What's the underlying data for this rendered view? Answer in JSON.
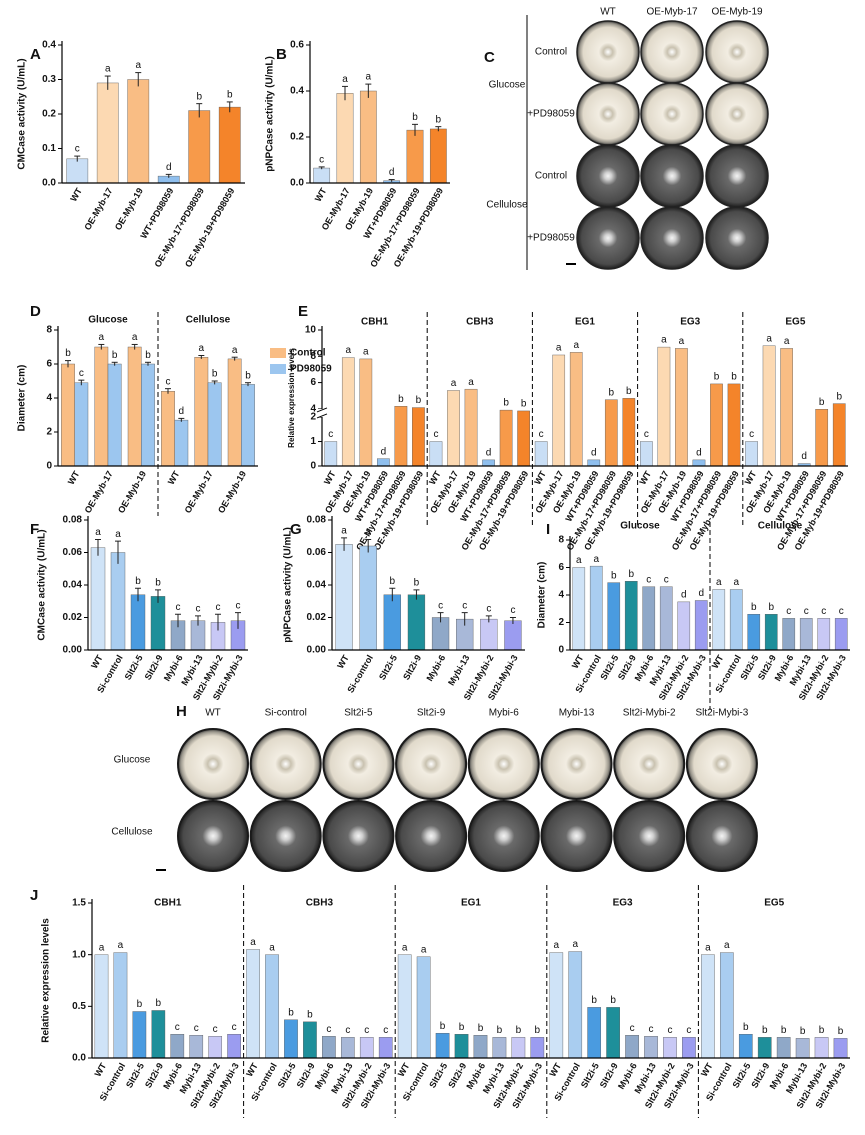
{
  "chart_data": [
    {
      "type": "bar",
      "panel": "A",
      "ylabel": "CMCase activity (U/mL)",
      "categories": [
        "WT",
        "OE-Myb-17",
        "OE-Myb-19",
        "WT+PD98059",
        "OE-Myb-17+PD98059",
        "OE-Myb-19+PD98059"
      ],
      "values": [
        0.07,
        0.29,
        0.3,
        0.02,
        0.21,
        0.22
      ],
      "errors": [
        0.008,
        0.02,
        0.02,
        0.005,
        0.02,
        0.015
      ],
      "letters": [
        "c",
        "a",
        "a",
        "d",
        "b",
        "b"
      ],
      "colors": [
        "#c9def5",
        "#fcd9b2",
        "#f9bd84",
        "#8fbfee",
        "#f79a4a",
        "#f4842a"
      ],
      "ylim": [
        0,
        0.4
      ],
      "yticks": [
        {
          "value": 0,
          "label": "0.0"
        },
        0.1,
        0.2,
        0.3,
        0.4
      ]
    },
    {
      "type": "bar",
      "panel": "B",
      "ylabel": "pNPCase activity (U/mL)",
      "categories": [
        "WT",
        "OE-Myb-17",
        "OE-Myb-19",
        "WT+PD98059",
        "OE-Myb-17+PD98059",
        "OE-Myb-19+PD98059"
      ],
      "values": [
        0.065,
        0.39,
        0.4,
        0.01,
        0.23,
        0.235
      ],
      "errors": [
        0.005,
        0.03,
        0.03,
        0.005,
        0.025,
        0.01
      ],
      "letters": [
        "c",
        "a",
        "a",
        "d",
        "b",
        "b"
      ],
      "colors": [
        "#c9def5",
        "#fcd9b2",
        "#f9bd84",
        "#8fbfee",
        "#f79a4a",
        "#f4842a"
      ],
      "ylim": [
        0,
        0.6
      ],
      "yticks": [
        {
          "value": 0,
          "label": "0.0"
        },
        0.2,
        0.4,
        0.6
      ]
    },
    {
      "type": "bar",
      "panel": "D",
      "ylabel": "Diameter (cm)",
      "categories": [
        "WT",
        "OE-Myb-17",
        "OE-Myb-19",
        "WT",
        "OE-Myb-17",
        "OE-Myb-19"
      ],
      "groups": [
        "Glucose",
        "Cellulose"
      ],
      "series": [
        {
          "name": "Control",
          "color": "#f9bd84",
          "values": [
            6.0,
            7.0,
            7.0,
            4.4,
            6.4,
            6.3
          ],
          "errors": [
            0.2,
            0.15,
            0.15,
            0.15,
            0.1,
            0.1
          ],
          "letters": [
            "b",
            "a",
            "a",
            "c",
            "a",
            "a"
          ]
        },
        {
          "name": "PD98059",
          "color": "#9cc6ef",
          "values": [
            4.9,
            6.0,
            6.0,
            2.7,
            4.9,
            4.8
          ],
          "errors": [
            0.15,
            0.1,
            0.1,
            0.1,
            0.1,
            0.1
          ],
          "letters": [
            "c",
            "b",
            "b",
            "d",
            "b",
            "b"
          ]
        }
      ],
      "legend": "right",
      "ylim": [
        0,
        8
      ],
      "yticks": [
        0,
        2,
        4,
        6,
        8
      ]
    },
    {
      "type": "bar",
      "panel": "E",
      "ylabel": "Relative expression levels",
      "categories": [
        "OE-Myb-17",
        "OE-Myb-19",
        "WT+PD98059",
        "OE-Myb-17+PD98059",
        "OE-Myb-19+PD98059",
        "WT"
      ],
      "order": [
        5,
        0,
        1,
        2,
        3,
        4
      ],
      "groups": [
        {
          "name": "CBH1",
          "values": [
            7.9,
            7.8,
            0.3,
            4.2,
            4.1,
            1.0
          ],
          "letters": [
            "a",
            "a",
            "d",
            "b",
            "b",
            "c"
          ]
        },
        {
          "name": "CBH3",
          "values": [
            5.4,
            5.5,
            0.25,
            3.7,
            3.5,
            1.0
          ],
          "letters": [
            "a",
            "a",
            "d",
            "b",
            "b",
            "c"
          ]
        },
        {
          "name": "EG1",
          "values": [
            8.1,
            8.3,
            0.25,
            4.7,
            4.8,
            1.0
          ],
          "letters": [
            "a",
            "a",
            "d",
            "b",
            "b",
            "c"
          ]
        },
        {
          "name": "EG3",
          "values": [
            8.7,
            8.6,
            0.25,
            5.9,
            5.9,
            1.0
          ],
          "letters": [
            "a",
            "a",
            "d",
            "b",
            "b",
            "c"
          ]
        },
        {
          "name": "EG5",
          "values": [
            8.8,
            8.6,
            0.1,
            3.9,
            4.4,
            1.0
          ],
          "letters": [
            "a",
            "a",
            "d",
            "b",
            "b",
            "c"
          ]
        }
      ],
      "colors": [
        "#fcd9b2",
        "#f9bd84",
        "#8fbfee",
        "#f79a4a",
        "#f4842a",
        "#c9def5"
      ],
      "ylim": [
        0,
        10
      ],
      "ybreak": [
        2,
        4
      ],
      "yticks": [
        0,
        1,
        2,
        4,
        6,
        8,
        10
      ]
    },
    {
      "type": "bar",
      "panel": "F",
      "ylabel": "CMCase activity (U/mL)",
      "categories": [
        "WT",
        "Si-control",
        "Slt2i-5",
        "Slt2i-9",
        "Mybi-6",
        "Mybi-13",
        "Slt2i-Mybi-2",
        "Slt2i-Mybi-3"
      ],
      "values": [
        0.063,
        0.06,
        0.034,
        0.033,
        0.018,
        0.018,
        0.017,
        0.018
      ],
      "errors": [
        0.005,
        0.007,
        0.004,
        0.004,
        0.004,
        0.003,
        0.005,
        0.005
      ],
      "letters": [
        "a",
        "a",
        "b",
        "b",
        "c",
        "c",
        "c",
        "c"
      ],
      "colors": [
        "#cfe3f7",
        "#a9cdf0",
        "#4a9be0",
        "#1e8f9a",
        "#8fa8c8",
        "#a8b8d8",
        "#c8c8f5",
        "#9b9cf0"
      ],
      "ylim": [
        0,
        0.08
      ],
      "yticks": [
        {
          "value": 0,
          "label": "0.00"
        },
        0.02,
        0.04,
        0.06,
        0.08
      ]
    },
    {
      "type": "bar",
      "panel": "G",
      "ylabel": "pNPCase activity (U/mL)",
      "categories": [
        "WT",
        "Si-control",
        "Slt2i-5",
        "Slt2i-9",
        "Mybi-6",
        "Mybi-13",
        "Slt2i-Mybi-2",
        "Slt2i-Mybi-3"
      ],
      "values": [
        0.065,
        0.064,
        0.034,
        0.034,
        0.02,
        0.019,
        0.019,
        0.018
      ],
      "errors": [
        0.004,
        0.004,
        0.004,
        0.003,
        0.003,
        0.004,
        0.002,
        0.002
      ],
      "letters": [
        "a",
        "a",
        "b",
        "b",
        "c",
        "c",
        "c",
        "c"
      ],
      "colors": [
        "#cfe3f7",
        "#a9cdf0",
        "#4a9be0",
        "#1e8f9a",
        "#8fa8c8",
        "#a8b8d8",
        "#c8c8f5",
        "#9b9cf0"
      ],
      "ylim": [
        0,
        0.08
      ],
      "yticks": [
        {
          "value": 0,
          "label": "0.00"
        },
        0.02,
        0.04,
        0.06,
        0.08
      ]
    },
    {
      "type": "bar",
      "panel": "I",
      "ylabel": "Diameter (cm)",
      "categories": [
        "WT",
        "Si-control",
        "Slt2i-5",
        "Slt2i-9",
        "Mybi-6",
        "Mybi-13",
        "Slt2i-Mybi-2",
        "Slt2i-Mybi-3"
      ],
      "groups": [
        {
          "name": "Glucose",
          "values": [
            6.0,
            6.1,
            4.9,
            5.0,
            4.6,
            4.6,
            3.5,
            3.6
          ],
          "letters": [
            "a",
            "a",
            "b",
            "b",
            "c",
            "c",
            "d",
            "d"
          ]
        },
        {
          "name": "Cellulose",
          "values": [
            4.4,
            4.4,
            2.6,
            2.6,
            2.3,
            2.3,
            2.3,
            2.3
          ],
          "letters": [
            "a",
            "a",
            "b",
            "b",
            "c",
            "c",
            "c",
            "c"
          ]
        }
      ],
      "colors": [
        "#cfe3f7",
        "#a9cdf0",
        "#4a9be0",
        "#1e8f9a",
        "#8fa8c8",
        "#a8b8d8",
        "#c8c8f5",
        "#9b9cf0"
      ],
      "ylim": [
        0,
        8
      ],
      "yticks": [
        0,
        2,
        4,
        6,
        8
      ]
    },
    {
      "type": "bar",
      "panel": "J",
      "ylabel": "Relative expression levels",
      "categories": [
        "WT",
        "Si-control",
        "Slt2i-5",
        "Slt2i-9",
        "Mybi-6",
        "Mybi-13",
        "Slt2i-Mybi-2",
        "Slt2i-Mybi-3"
      ],
      "groups": [
        {
          "name": "CBH1",
          "values": [
            1.0,
            1.02,
            0.45,
            0.46,
            0.23,
            0.22,
            0.21,
            0.23
          ],
          "letters": [
            "a",
            "a",
            "b",
            "b",
            "c",
            "c",
            "c",
            "c"
          ]
        },
        {
          "name": "CBH3",
          "values": [
            1.05,
            1.0,
            0.37,
            0.35,
            0.21,
            0.2,
            0.2,
            0.2
          ],
          "letters": [
            "a",
            "a",
            "b",
            "b",
            "c",
            "c",
            "c",
            "c"
          ]
        },
        {
          "name": "EG1",
          "values": [
            1.0,
            0.98,
            0.24,
            0.23,
            0.22,
            0.2,
            0.2,
            0.2
          ],
          "letters": [
            "a",
            "a",
            "b",
            "b",
            "b",
            "b",
            "b",
            "b"
          ]
        },
        {
          "name": "EG3",
          "values": [
            1.02,
            1.03,
            0.49,
            0.49,
            0.22,
            0.21,
            0.2,
            0.2
          ],
          "letters": [
            "a",
            "a",
            "b",
            "b",
            "c",
            "c",
            "c",
            "c"
          ]
        },
        {
          "name": "EG5",
          "values": [
            1.0,
            1.02,
            0.23,
            0.2,
            0.2,
            0.19,
            0.2,
            0.19
          ],
          "letters": [
            "a",
            "a",
            "b",
            "b",
            "b",
            "b",
            "b",
            "b"
          ]
        }
      ],
      "colors": [
        "#cfe3f7",
        "#a9cdf0",
        "#4a9be0",
        "#1e8f9a",
        "#8fa8c8",
        "#a8b8d8",
        "#c8c8f5",
        "#9b9cf0"
      ],
      "ylim": [
        0,
        1.5
      ],
      "yticks": [
        {
          "value": 0,
          "label": "0.0"
        },
        0.5,
        {
          "value": 1,
          "label": "1.0"
        },
        1.5
      ]
    }
  ],
  "panel_c": {
    "panel": "C",
    "columns": [
      "WT",
      "OE-Myb-17",
      "OE-Myb-19"
    ],
    "groups": [
      {
        "name": "Glucose",
        "rows": [
          "Control",
          "+PD98059"
        ]
      },
      {
        "name": "Cellulose",
        "rows": [
          "Control",
          "+PD98059"
        ]
      }
    ]
  },
  "panel_h": {
    "panel": "H",
    "columns": [
      "WT",
      "Si-control",
      "Slt2i-5",
      "Slt2i-9",
      "Mybi-6",
      "Mybi-13",
      "Slt2i-Mybi-2",
      "Slt2i-Mybi-3"
    ],
    "rows": [
      "Glucose",
      "Cellulose"
    ]
  }
}
